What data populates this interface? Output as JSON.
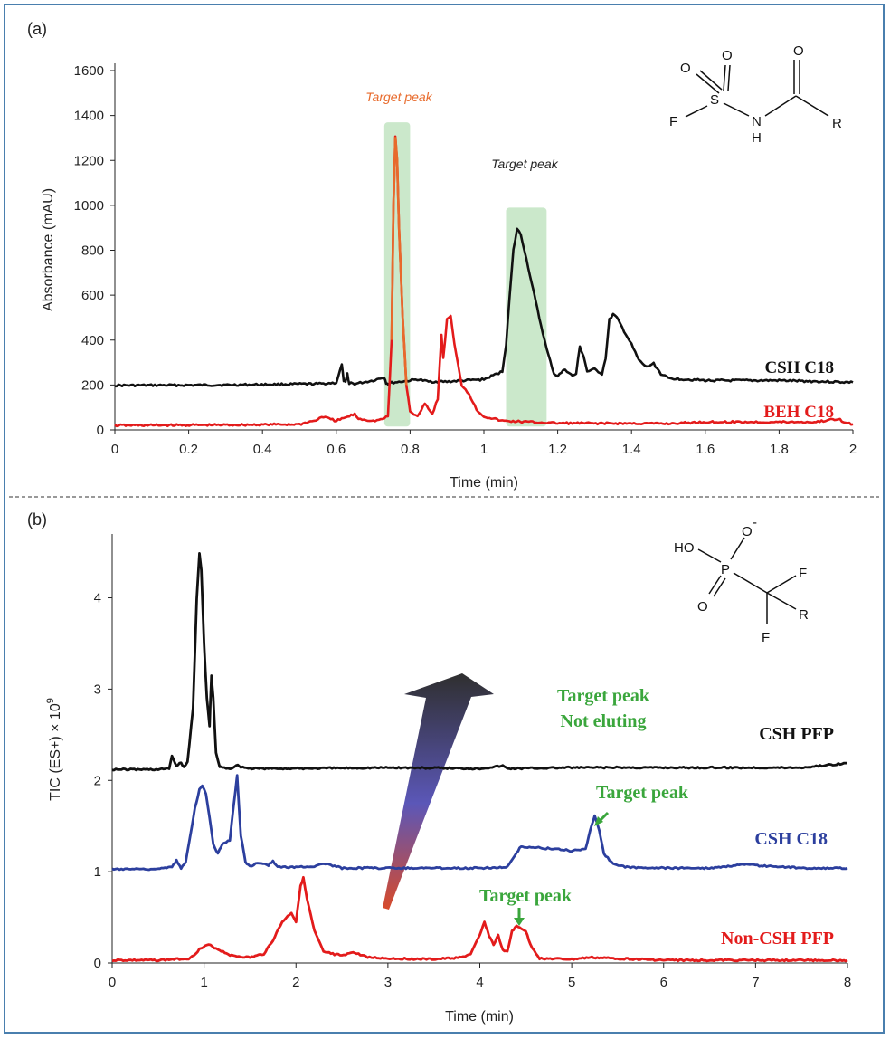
{
  "colors": {
    "black": "#111111",
    "red": "#e31b1b",
    "blue": "#2c3f9e",
    "green": "#3aa63c",
    "orange": "#e86a2b",
    "highlight": "#a8d8a8",
    "frame": "#4a7fae"
  },
  "chart_data": [
    {
      "panel_label": "(a)",
      "type": "line",
      "xlabel": "Time (min)",
      "ylabel": "Absorbance (mAU)",
      "xlim": [
        0,
        2
      ],
      "ylim": [
        0,
        1600
      ],
      "xticks": [
        "0",
        "0.2",
        "0.4",
        "0.6",
        "0.8",
        "1",
        "1.2",
        "1.4",
        "1.6",
        "1.8",
        "2"
      ],
      "yticks": [
        "0",
        "200",
        "400",
        "600",
        "800",
        "1000",
        "1200",
        "1400",
        "1600"
      ],
      "series": [
        {
          "name": "CSH C18",
          "color": "#111111",
          "x": [
            0,
            0.3,
            0.55,
            0.6,
            0.615,
            0.62,
            0.625,
            0.63,
            0.635,
            0.64,
            0.65,
            0.7,
            0.73,
            0.735,
            0.74,
            0.75,
            0.8,
            0.82,
            0.85,
            0.9,
            0.95,
            1.0,
            1.05,
            1.06,
            1.07,
            1.08,
            1.09,
            1.1,
            1.11,
            1.13,
            1.15,
            1.17,
            1.19,
            1.2,
            1.22,
            1.24,
            1.25,
            1.26,
            1.27,
            1.28,
            1.3,
            1.32,
            1.33,
            1.34,
            1.35,
            1.36,
            1.38,
            1.4,
            1.42,
            1.44,
            1.46,
            1.48,
            1.5,
            1.6,
            1.8,
            2.0
          ],
          "y": [
            198,
            200,
            205,
            210,
            290,
            220,
            210,
            250,
            205,
            210,
            205,
            220,
            235,
            210,
            205,
            210,
            220,
            225,
            215,
            215,
            220,
            225,
            260,
            380,
            600,
            800,
            895,
            870,
            800,
            650,
            500,
            360,
            250,
            240,
            270,
            240,
            250,
            370,
            330,
            260,
            270,
            250,
            320,
            490,
            515,
            500,
            440,
            380,
            310,
            280,
            295,
            250,
            230,
            220,
            220,
            212
          ]
        },
        {
          "name": "BEH C18",
          "color": "#e31b1b",
          "x": [
            0,
            0.3,
            0.5,
            0.55,
            0.56,
            0.6,
            0.65,
            0.66,
            0.7,
            0.72,
            0.74,
            0.75,
            0.755,
            0.76,
            0.765,
            0.77,
            0.78,
            0.79,
            0.8,
            0.82,
            0.84,
            0.86,
            0.875,
            0.885,
            0.89,
            0.9,
            0.91,
            0.92,
            0.94,
            0.96,
            0.98,
            1.0,
            1.05,
            1.2,
            1.5,
            1.6,
            1.9,
            1.96,
            1.98,
            2.0
          ],
          "y": [
            20,
            22,
            25,
            45,
            60,
            40,
            70,
            50,
            40,
            45,
            60,
            400,
            1000,
            1305,
            1200,
            900,
            500,
            200,
            80,
            60,
            120,
            70,
            140,
            420,
            320,
            490,
            510,
            380,
            200,
            160,
            90,
            60,
            40,
            30,
            28,
            35,
            35,
            50,
            30,
            25
          ]
        }
      ],
      "highlight_regions_x": [
        [
          0.73,
          0.8
        ],
        [
          1.06,
          1.17
        ]
      ],
      "annotations": [
        {
          "text": "Target peak",
          "x": 0.77,
          "y": 1480,
          "color": "#e86a2b"
        },
        {
          "text": "Target peak",
          "x": 1.08,
          "y": 1180,
          "color": "#222222"
        }
      ],
      "series_labels": [
        {
          "text": "CSH C18",
          "color": "#111111"
        },
        {
          "text": "BEH C18",
          "color": "#e31b1b"
        }
      ],
      "structure_labels": [
        "O",
        "O",
        "O",
        "S",
        "F",
        "N",
        "H",
        "R"
      ]
    },
    {
      "panel_label": "(b)",
      "type": "line",
      "xlabel": "Time (min)",
      "ylabel": "TIC (ES+) × 10",
      "ylabel_sup": "9",
      "xlim": [
        0,
        8
      ],
      "ylim": [
        0,
        4.6
      ],
      "xticks": [
        "0",
        "1",
        "2",
        "3",
        "4",
        "5",
        "6",
        "7",
        "8"
      ],
      "yticks": [
        "0",
        "1",
        "2",
        "3",
        "4"
      ],
      "series": [
        {
          "name": "CSH PFP",
          "color": "#111111",
          "x": [
            0,
            0.5,
            0.62,
            0.65,
            0.7,
            0.75,
            0.78,
            0.82,
            0.88,
            0.92,
            0.95,
            0.97,
            1.0,
            1.03,
            1.06,
            1.08,
            1.1,
            1.13,
            1.17,
            1.2,
            1.3,
            1.35,
            1.4,
            1.5,
            2,
            3,
            4,
            4.25,
            4.3,
            5,
            6,
            7,
            7.5,
            8
          ],
          "y": [
            2.12,
            2.12,
            2.13,
            2.27,
            2.15,
            2.2,
            2.14,
            2.2,
            2.8,
            4.0,
            4.48,
            4.3,
            3.5,
            2.9,
            2.6,
            3.15,
            2.9,
            2.3,
            2.15,
            2.14,
            2.13,
            2.17,
            2.15,
            2.13,
            2.13,
            2.14,
            2.13,
            2.16,
            2.13,
            2.14,
            2.14,
            2.14,
            2.14,
            2.19
          ]
        },
        {
          "name": "CSH C18",
          "color": "#2c3f9e",
          "x": [
            0,
            0.5,
            0.65,
            0.7,
            0.75,
            0.8,
            0.85,
            0.9,
            0.95,
            0.98,
            1.02,
            1.06,
            1.1,
            1.15,
            1.2,
            1.28,
            1.32,
            1.36,
            1.4,
            1.45,
            1.5,
            1.6,
            1.7,
            1.75,
            1.8,
            2,
            2.2,
            2.3,
            2.5,
            3,
            4,
            4.3,
            4.4,
            4.45,
            4.5,
            4.8,
            5.0,
            5.15,
            5.2,
            5.25,
            5.3,
            5.35,
            5.45,
            5.6,
            6,
            6.5,
            6.9,
            7,
            7.5,
            8
          ],
          "y": [
            1.03,
            1.03,
            1.05,
            1.12,
            1.04,
            1.1,
            1.4,
            1.7,
            1.9,
            1.95,
            1.85,
            1.6,
            1.3,
            1.2,
            1.3,
            1.35,
            1.7,
            2.05,
            1.4,
            1.1,
            1.06,
            1.1,
            1.07,
            1.12,
            1.05,
            1.05,
            1.06,
            1.09,
            1.04,
            1.04,
            1.04,
            1.05,
            1.2,
            1.28,
            1.27,
            1.25,
            1.23,
            1.25,
            1.45,
            1.62,
            1.45,
            1.2,
            1.08,
            1.05,
            1.04,
            1.04,
            1.08,
            1.07,
            1.04,
            1.04
          ]
        },
        {
          "name": "Non-CSH PFP",
          "color": "#e31b1b",
          "x": [
            0,
            0.5,
            0.85,
            0.95,
            1.05,
            1.15,
            1.3,
            1.5,
            1.65,
            1.75,
            1.85,
            1.95,
            2.0,
            2.05,
            2.08,
            2.12,
            2.2,
            2.3,
            2.5,
            2.6,
            2.8,
            3,
            3.5,
            3.8,
            3.9,
            4.0,
            4.05,
            4.1,
            4.15,
            4.2,
            4.25,
            4.3,
            4.35,
            4.4,
            4.45,
            4.5,
            4.55,
            4.65,
            5,
            5.2,
            6,
            7,
            8
          ],
          "y": [
            0.03,
            0.03,
            0.05,
            0.15,
            0.2,
            0.15,
            0.08,
            0.06,
            0.1,
            0.25,
            0.45,
            0.55,
            0.45,
            0.85,
            0.93,
            0.7,
            0.35,
            0.12,
            0.08,
            0.12,
            0.06,
            0.05,
            0.04,
            0.06,
            0.1,
            0.3,
            0.45,
            0.3,
            0.2,
            0.3,
            0.15,
            0.12,
            0.35,
            0.4,
            0.38,
            0.35,
            0.2,
            0.05,
            0.04,
            0.06,
            0.03,
            0.03,
            0.03
          ]
        }
      ],
      "annotations": [
        {
          "text": "Target peak",
          "color": "#3aa63c"
        },
        {
          "text": "Not eluting",
          "color": "#3aa63c"
        },
        {
          "text": "Target peak",
          "color": "#3aa63c"
        },
        {
          "text": "Target peak",
          "color": "#3aa63c"
        }
      ],
      "series_labels": [
        {
          "text": "CSH PFP",
          "color": "#111111"
        },
        {
          "text": "CSH C18",
          "color": "#2c3f9e"
        },
        {
          "text": "Non-CSH PFP",
          "color": "#e31b1b"
        }
      ],
      "structure_labels": [
        "HO",
        "O",
        "-",
        "P",
        "O",
        "F",
        "F",
        "R"
      ]
    }
  ]
}
